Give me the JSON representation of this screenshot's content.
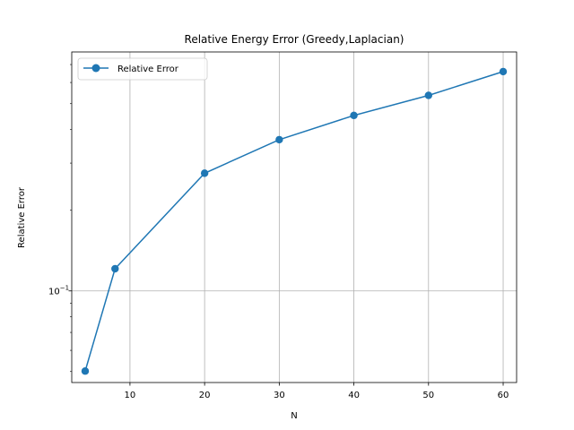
{
  "chart_data": {
    "type": "line",
    "title": "Relative Energy Error (Greedy,Laplacian)",
    "xlabel": "N",
    "ylabel": "Relative Error",
    "yscale": "log",
    "grid": true,
    "legend_loc": "upper left",
    "xlim": [
      2.2,
      61.8
    ],
    "ylim": [
      0.0455,
      0.78
    ],
    "x_ticks": [
      10,
      20,
      30,
      40,
      50,
      60
    ],
    "x_tick_labels": [
      "10",
      "20",
      "30",
      "40",
      "50",
      "60"
    ],
    "y_ticks": [
      0.1
    ],
    "y_tick_labels": [
      "10",
      "−1"
    ],
    "series": [
      {
        "name": "Relative Error",
        "color": "#1f77b4",
        "marker": "circle",
        "x": [
          4,
          8,
          20,
          30,
          40,
          50,
          60
        ],
        "y": [
          0.0502,
          0.121,
          0.275,
          0.367,
          0.452,
          0.537,
          0.659
        ]
      }
    ]
  }
}
